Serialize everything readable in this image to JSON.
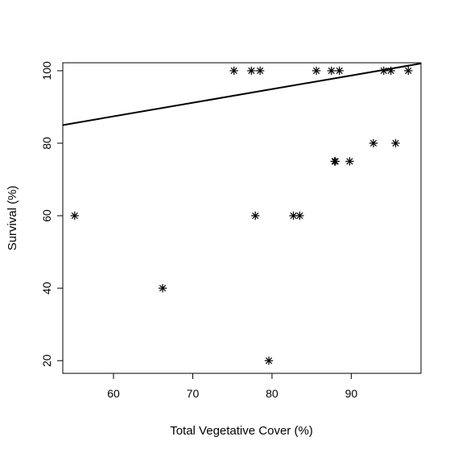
{
  "chart_data": {
    "type": "scatter",
    "title": "",
    "xlabel": "Total Vegetative Cover (%)",
    "ylabel": "Survival (%)",
    "xlim": [
      53.6,
      98.8
    ],
    "ylim": [
      16.5,
      102.2
    ],
    "x_ticks": [
      60,
      70,
      80,
      90
    ],
    "y_ticks": [
      20,
      40,
      60,
      80,
      100
    ],
    "grid": false,
    "legend": "none",
    "marker": "asterisk",
    "color": "#000000",
    "points": [
      {
        "x": 55.1,
        "y": 60
      },
      {
        "x": 66.2,
        "y": 40
      },
      {
        "x": 75.2,
        "y": 100
      },
      {
        "x": 77.4,
        "y": 100
      },
      {
        "x": 78.5,
        "y": 100
      },
      {
        "x": 77.9,
        "y": 60
      },
      {
        "x": 79.6,
        "y": 20
      },
      {
        "x": 82.7,
        "y": 60
      },
      {
        "x": 83.5,
        "y": 60
      },
      {
        "x": 85.6,
        "y": 100
      },
      {
        "x": 87.5,
        "y": 100
      },
      {
        "x": 88.5,
        "y": 100
      },
      {
        "x": 87.9,
        "y": 75
      },
      {
        "x": 88.0,
        "y": 75
      },
      {
        "x": 89.8,
        "y": 75
      },
      {
        "x": 92.8,
        "y": 80
      },
      {
        "x": 94.1,
        "y": 100
      },
      {
        "x": 95.0,
        "y": 100
      },
      {
        "x": 95.6,
        "y": 80
      },
      {
        "x": 97.2,
        "y": 100
      }
    ],
    "trend_line": {
      "x": [
        53.6,
        98.8
      ],
      "y": [
        85.0,
        102.0
      ]
    }
  }
}
